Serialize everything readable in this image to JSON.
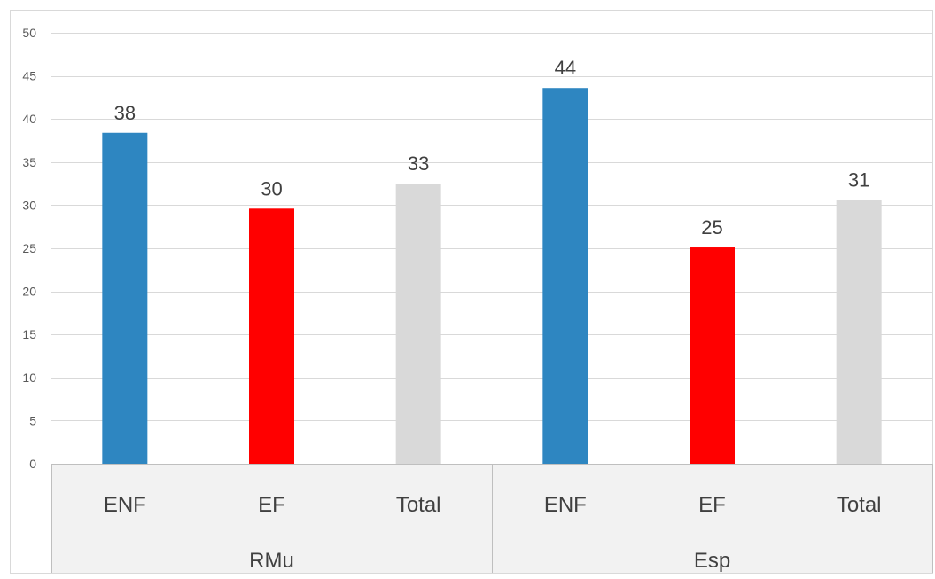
{
  "chart_data": {
    "type": "bar",
    "title": "",
    "xlabel": "",
    "ylabel": "",
    "ylim": [
      0,
      50
    ],
    "yticks": [
      0,
      5,
      10,
      15,
      20,
      25,
      30,
      35,
      40,
      45,
      50
    ],
    "grid": true,
    "legend": "none",
    "groups": [
      {
        "name": "RMu",
        "bars": [
          {
            "category": "ENF",
            "value": 38.4,
            "label": "38",
            "color": "#2e86c1"
          },
          {
            "category": "EF",
            "value": 29.6,
            "label": "30",
            "color": "#ff0000"
          },
          {
            "category": "Total",
            "value": 32.5,
            "label": "33",
            "color": "#d9d9d9"
          }
        ]
      },
      {
        "name": "Esp",
        "bars": [
          {
            "category": "ENF",
            "value": 43.6,
            "label": "44",
            "color": "#2e86c1"
          },
          {
            "category": "EF",
            "value": 25.1,
            "label": "25",
            "color": "#ff0000"
          },
          {
            "category": "Total",
            "value": 30.6,
            "label": "31",
            "color": "#d9d9d9"
          }
        ]
      }
    ]
  }
}
